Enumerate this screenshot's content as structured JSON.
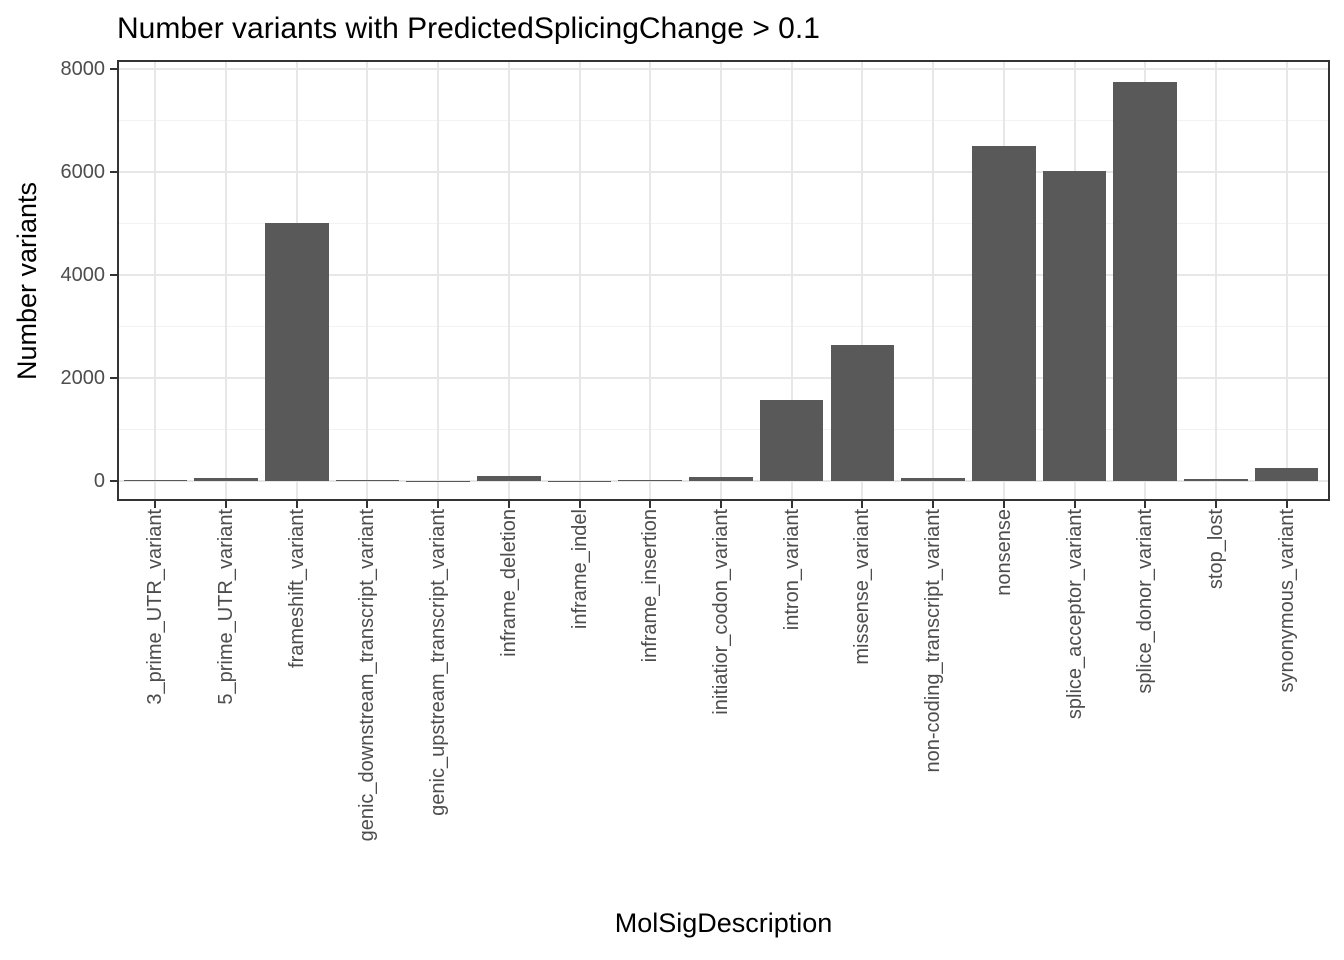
{
  "chart_data": {
    "type": "bar",
    "title": "Number variants with PredictedSplicingChange > 0.1",
    "xlabel": "MolSigDescription",
    "ylabel": "Number variants",
    "categories": [
      "3_prime_UTR_variant",
      "5_prime_UTR_variant",
      "frameshift_variant",
      "genic_downstream_transcript_variant",
      "genic_upstream_transcript_variant",
      "inframe_deletion",
      "inframe_indel",
      "inframe_insertion",
      "initiatior_codon_variant",
      "intron_variant",
      "missense_variant",
      "non-coding_transcript_variant",
      "nonsense",
      "splice_acceptor_variant",
      "splice_donor_variant",
      "stop_lost",
      "synonymous_variant"
    ],
    "values": [
      25,
      50,
      5010,
      25,
      5,
      100,
      5,
      15,
      80,
      1570,
      2650,
      65,
      6500,
      6020,
      7760,
      35,
      250
    ],
    "ylim": [
      0,
      8000
    ],
    "yticks": [
      0,
      2000,
      4000,
      6000,
      8000
    ],
    "yticks_minor": [
      1000,
      3000,
      5000,
      7000
    ],
    "grid": {
      "horizontal_major": true,
      "horizontal_minor": true,
      "vertical_major_per_category": true
    },
    "legend": "none",
    "colors": {
      "bar": "#595959",
      "grid_major": "#e7e7e7",
      "grid_minor": "#f2f2f2",
      "panel_border": "#333333",
      "tick_label": "#4d4d4d",
      "title_text": "#000000"
    }
  }
}
